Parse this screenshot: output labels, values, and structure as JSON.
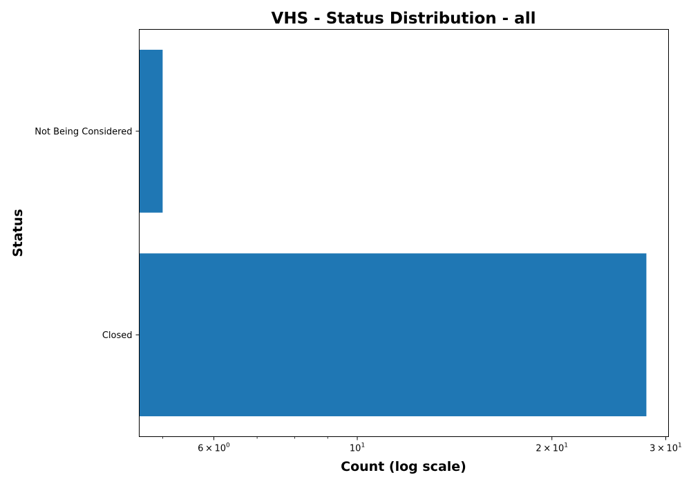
{
  "chart_data": {
    "type": "bar",
    "orientation": "horizontal",
    "title": "VHS - Status Distribution - all",
    "xlabel": "Count (log scale)",
    "ylabel": "Status",
    "xscale": "log",
    "xlim": [
      4.6,
      30.3
    ],
    "categories": [
      "Closed",
      "Not Being Considered"
    ],
    "values": [
      28,
      5
    ],
    "bar_color": "#1f77b4",
    "major_ticks": [
      {
        "value": 6,
        "mantissa": "6",
        "times": "×",
        "base": "10",
        "exp": "0"
      },
      {
        "value": 10,
        "mantissa": "",
        "times": "",
        "base": "10",
        "exp": "1"
      },
      {
        "value": 20,
        "mantissa": "2",
        "times": "×",
        "base": "10",
        "exp": "1"
      },
      {
        "value": 30,
        "mantissa": "3",
        "times": "×",
        "base": "10",
        "exp": "1"
      }
    ],
    "minor_ticks": [
      5,
      7,
      8,
      9
    ],
    "grid": false,
    "legend": "none"
  }
}
